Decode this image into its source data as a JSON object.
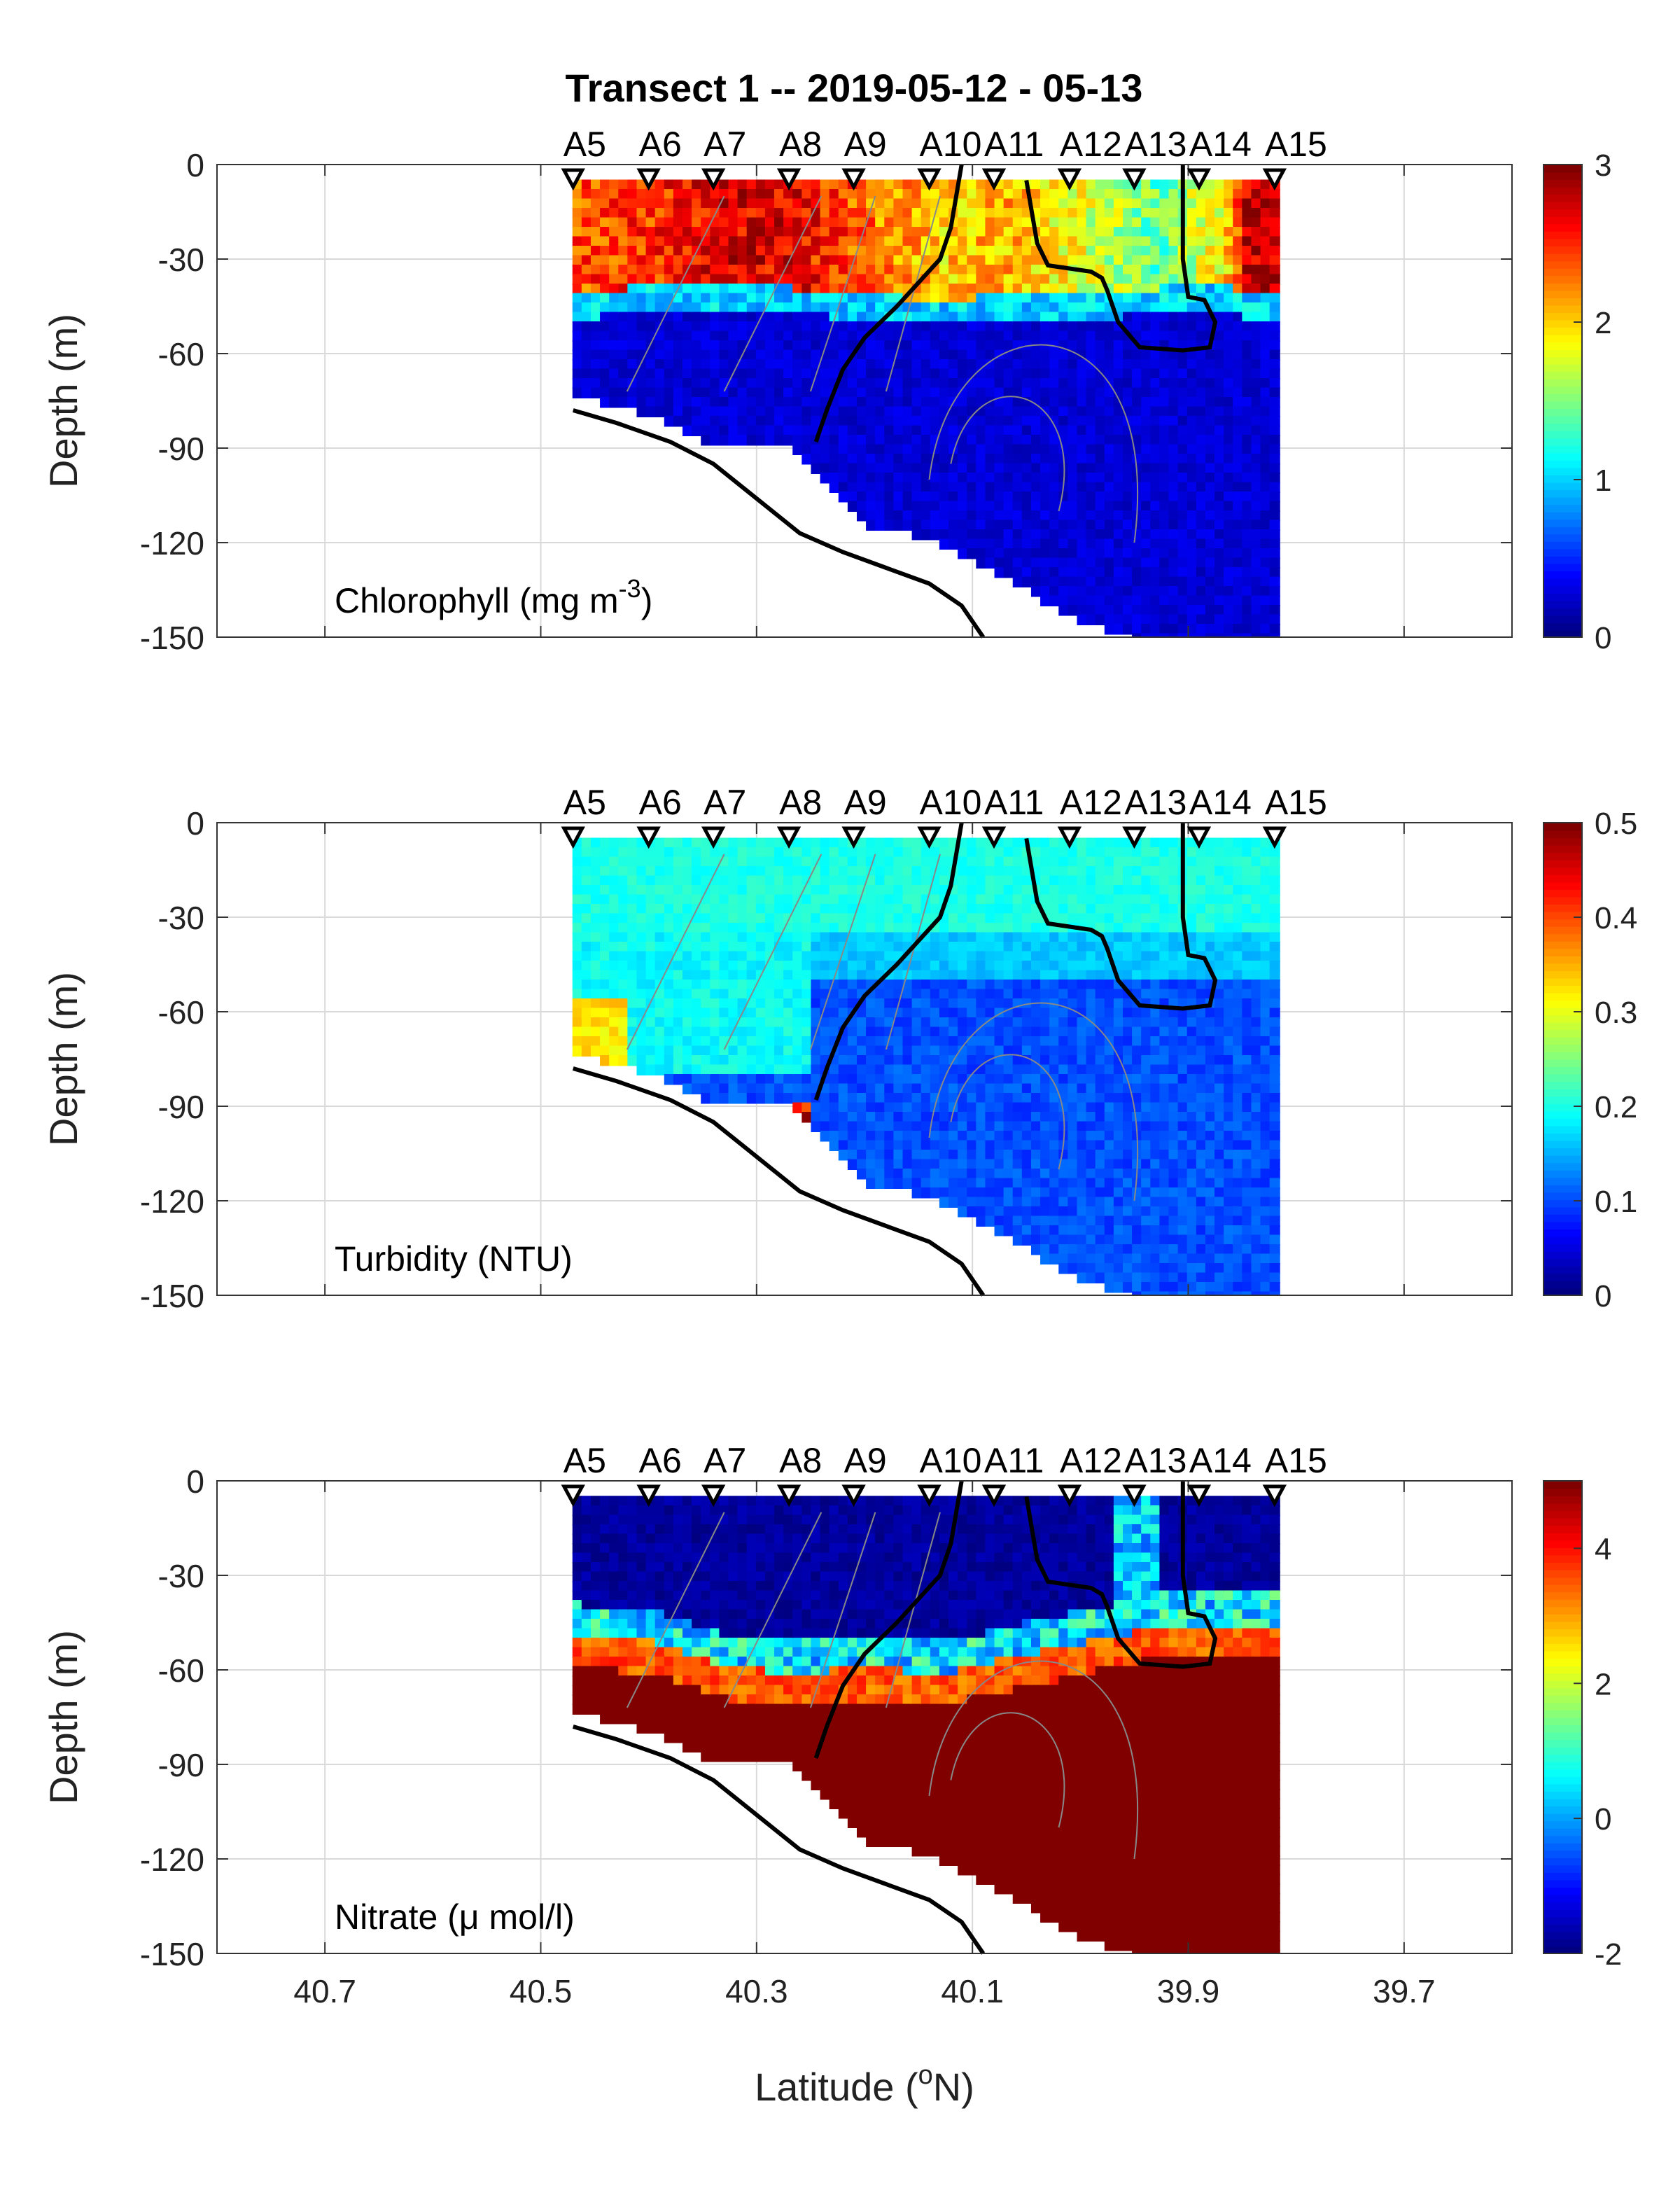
{
  "figure": {
    "title": "Transect 1 -- 2019-05-12 - 05-13",
    "xlabel_prefix": "Latitude (",
    "xlabel_sup": "o",
    "xlabel_suffix": "N)",
    "ylabel": "Depth (m)"
  },
  "chart_data": [
    {
      "type": "heatmap",
      "id": "chlorophyll",
      "label_main": "Chlorophyll (mg m",
      "label_sup": "-3",
      "label_end": ")",
      "xlim": [
        40.8,
        39.6
      ],
      "ylim": [
        -150,
        0
      ],
      "xticks": [
        40.7,
        40.5,
        40.3,
        40.1,
        39.9,
        39.7
      ],
      "xticklabels": [
        "40.7",
        "40.5",
        "40.3",
        "40.1",
        "39.9",
        "39.7"
      ],
      "yticks": [
        0,
        -30,
        -60,
        -90,
        -120,
        -150
      ],
      "yticklabels": [
        "0",
        "-30",
        "-60",
        "-90",
        "-120",
        "-150"
      ],
      "clim": [
        0,
        3
      ],
      "cticks": [
        0,
        1,
        2,
        3
      ],
      "cticklabels": [
        "0",
        "1",
        "2",
        "3"
      ],
      "surface_profile": [
        [
          40.47,
          2.4
        ],
        [
          40.4,
          2.5
        ],
        [
          40.33,
          2.7
        ],
        [
          40.27,
          2.7
        ],
        [
          40.2,
          2.3
        ],
        [
          40.13,
          2.0
        ],
        [
          40.07,
          2.1
        ],
        [
          40.0,
          1.8
        ],
        [
          39.93,
          1.4
        ],
        [
          39.87,
          1.9
        ],
        [
          39.85,
          2.8
        ]
      ],
      "surface_depth": [
        [
          40.47,
          -40
        ],
        [
          40.4,
          -37
        ],
        [
          40.33,
          -38
        ],
        [
          40.27,
          -38
        ],
        [
          40.2,
          -40
        ],
        [
          40.13,
          -42
        ],
        [
          40.07,
          -40
        ],
        [
          40.0,
          -40
        ],
        [
          39.93,
          -38
        ],
        [
          39.87,
          -36
        ],
        [
          39.85,
          -40
        ]
      ],
      "deep_value": 0.15
    },
    {
      "type": "heatmap",
      "id": "turbidity",
      "label_main": "Turbidity (NTU)",
      "label_sup": "",
      "label_end": "",
      "xlim": [
        40.8,
        39.6
      ],
      "ylim": [
        -150,
        0
      ],
      "xticks": [
        40.7,
        40.5,
        40.3,
        40.1,
        39.9,
        39.7
      ],
      "xticklabels": [
        "40.7",
        "40.5",
        "40.3",
        "40.1",
        "39.9",
        "39.7"
      ],
      "yticks": [
        0,
        -30,
        -60,
        -90,
        -120,
        -150
      ],
      "yticklabels": [
        "0",
        "-30",
        "-60",
        "-90",
        "-120",
        "-150"
      ],
      "clim": [
        0,
        0.5
      ],
      "cticks": [
        0,
        0.1,
        0.2,
        0.3,
        0.4,
        0.5
      ],
      "cticklabels": [
        "0",
        "0.1",
        "0.2",
        "0.3",
        "0.4",
        "0.5"
      ]
    },
    {
      "type": "heatmap",
      "id": "nitrate",
      "label_main": "Nitrate (μ mol/l)",
      "label_sup": "",
      "label_end": "",
      "xlim": [
        40.8,
        39.6
      ],
      "ylim": [
        -150,
        0
      ],
      "xticks": [
        40.7,
        40.5,
        40.3,
        40.1,
        39.9,
        39.7
      ],
      "xticklabels": [
        "40.7",
        "40.5",
        "40.3",
        "40.1",
        "39.9",
        "39.7"
      ],
      "yticks": [
        0,
        -30,
        -60,
        -90,
        -120,
        -150
      ],
      "yticklabels": [
        "0",
        "-30",
        "-60",
        "-90",
        "-120",
        "-150"
      ],
      "clim": [
        -2,
        5
      ],
      "cticks": [
        -2,
        0,
        2,
        4
      ],
      "cticklabels": [
        "-2",
        "0",
        "2",
        "4"
      ],
      "nitracline_depth": [
        [
          40.47,
          -48
        ],
        [
          40.4,
          -50
        ],
        [
          40.33,
          -58
        ],
        [
          40.27,
          -60
        ],
        [
          40.2,
          -58
        ],
        [
          40.13,
          -60
        ],
        [
          40.07,
          -55
        ],
        [
          40.0,
          -50
        ],
        [
          39.93,
          -45
        ],
        [
          39.87,
          -45
        ],
        [
          39.85,
          -45
        ]
      ]
    }
  ],
  "stations": {
    "names": [
      "A5",
      "A6",
      "A7",
      "A8",
      "A9",
      "A10",
      "A11",
      "A12",
      "A13",
      "A14",
      "A15"
    ],
    "lat": [
      40.47,
      40.4,
      40.34,
      40.27,
      40.21,
      40.14,
      40.08,
      40.01,
      39.95,
      39.89,
      39.82
    ],
    "bottom_of_cast": [
      -72,
      -78,
      -88,
      -88,
      -112,
      -118,
      -128,
      -143,
      -150,
      -150,
      -150
    ]
  },
  "bathymetry": {
    "lat": [
      40.47,
      40.43,
      40.38,
      40.34,
      40.3,
      40.26,
      40.22,
      40.18,
      40.14,
      40.11,
      40.09
    ],
    "depth": [
      -78,
      -82,
      -88,
      -95,
      -106,
      -117,
      -123,
      -128,
      -133,
      -140,
      -150
    ]
  },
  "contours": {
    "left_contour": {
      "lat": [
        40.11,
        40.115,
        40.12,
        40.13,
        40.17,
        40.2,
        40.22,
        40.235,
        40.245
      ],
      "depth": [
        0,
        -10,
        -20,
        -30,
        -45,
        -55,
        -65,
        -78,
        -88
      ]
    },
    "right_contour": {
      "lat": [
        40.05,
        40.045,
        40.04,
        40.03,
        39.99,
        39.98,
        39.975,
        39.965,
        39.945,
        39.905,
        39.88,
        39.875,
        39.885,
        39.9,
        39.905,
        39.905
      ],
      "depth": [
        -5,
        -15,
        -25,
        -32,
        -34,
        -36,
        -40,
        -50,
        -58,
        -59,
        -58,
        -50,
        -43,
        -42,
        -30,
        0
      ]
    }
  }
}
